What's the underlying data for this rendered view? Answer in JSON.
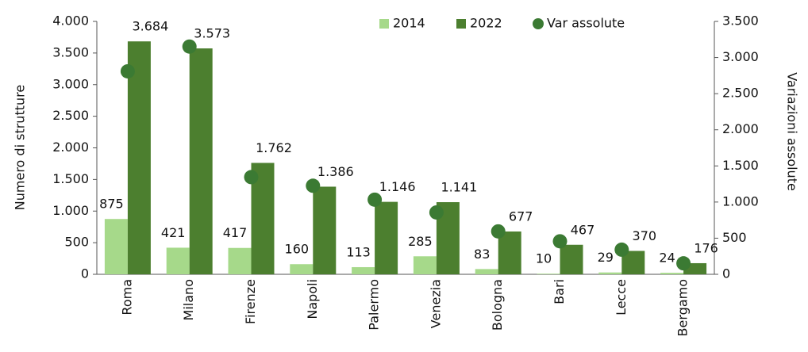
{
  "chart_data": {
    "type": "bar",
    "categories": [
      "Roma",
      "Milano",
      "Firenze",
      "Napoli",
      "Palermo",
      "Venezia",
      "Bologna",
      "Bari",
      "Lecce",
      "Bergamo"
    ],
    "series": [
      {
        "name": "2014",
        "color": "#a6d98a",
        "values": [
          875,
          421,
          417,
          160,
          113,
          285,
          83,
          10,
          29,
          24
        ]
      },
      {
        "name": "2022",
        "color": "#4c7f2f",
        "values": [
          3684,
          3573,
          1762,
          1386,
          1146,
          1141,
          677,
          467,
          370,
          176
        ],
        "value_labels": [
          "3.684",
          "3.573",
          "1.762",
          "1.386",
          "1.146",
          "1.141",
          "677",
          "467",
          "370",
          "176"
        ]
      },
      {
        "name": "Var assolute",
        "color": "#3b7a33",
        "axis": "y2",
        "values": [
          2809,
          3152,
          1345,
          1226,
          1033,
          856,
          594,
          457,
          341,
          152
        ]
      }
    ],
    "ylabel": "Numero di strutture",
    "y2label": "Variazioni assolute",
    "ylim": [
      0,
      4000
    ],
    "yticks": [
      0,
      500,
      {
        "value": 1000,
        "label": "1.000"
      },
      {
        "value": 1500,
        "label": "1.500"
      },
      {
        "value": 2000,
        "label": "2.000"
      },
      {
        "value": 2500,
        "label": "2.500"
      },
      {
        "value": 3000,
        "label": "3.000"
      },
      {
        "value": 3500,
        "label": "3.500"
      },
      {
        "value": 4000,
        "label": "4.000"
      }
    ],
    "y2lim": [
      0,
      3500
    ],
    "y2ticks": [
      0,
      500,
      {
        "value": 1000,
        "label": "1.000"
      },
      {
        "value": 1500,
        "label": "1.500"
      },
      {
        "value": 2000,
        "label": "2.000"
      },
      {
        "value": 2500,
        "label": "2.500"
      },
      {
        "value": 3000,
        "label": "3.000"
      },
      {
        "value": 3500,
        "label": "3.500"
      }
    ],
    "legend": "top"
  }
}
